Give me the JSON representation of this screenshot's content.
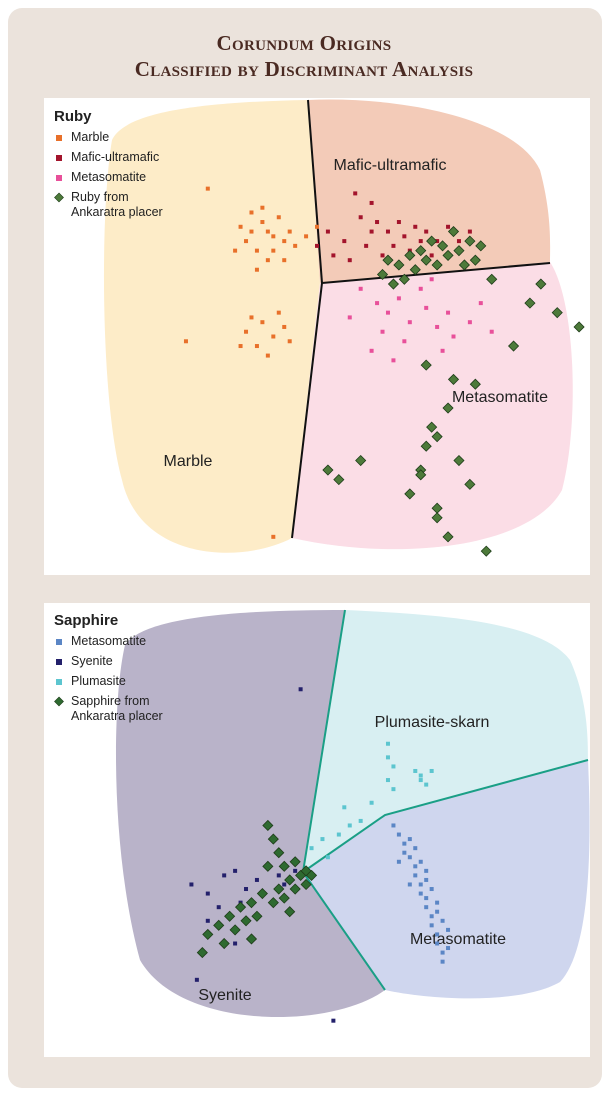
{
  "title": [
    "Corundum Origins",
    "Classified by Discriminant Analysis"
  ],
  "chart_data": [
    {
      "type": "scatter",
      "title": "Ruby",
      "xlim": [
        0,
        100
      ],
      "ylim": [
        0,
        100
      ],
      "annotations": [
        "Mafic-ultramafic",
        "Metasomatite",
        "Marble"
      ],
      "series": [
        {
          "name": "Marble",
          "color": "#e8702a",
          "marker": "square",
          "x": [
            38,
            40,
            42,
            39,
            41,
            44,
            37,
            43,
            40,
            36,
            45,
            39,
            42,
            38,
            46,
            35,
            41,
            44,
            48,
            50,
            37,
            40,
            42,
            39,
            44,
            41,
            38,
            45,
            43,
            36,
            30,
            26,
            42
          ],
          "y": [
            72,
            74,
            71,
            68,
            66,
            70,
            70,
            75,
            77,
            73,
            72,
            64,
            68,
            76,
            69,
            68,
            72,
            66,
            71,
            73,
            51,
            53,
            50,
            48,
            52,
            46,
            54,
            49,
            55,
            48,
            81,
            49,
            8
          ]
        },
        {
          "name": "Mafic-ultramafic",
          "color": "#a3142c",
          "marker": "square",
          "x": [
            57,
            60,
            58,
            61,
            52,
            55,
            63,
            66,
            68,
            70,
            72,
            74,
            64,
            59,
            53,
            56,
            62,
            67,
            76,
            78,
            71,
            60,
            65,
            69,
            50
          ],
          "y": [
            80,
            78,
            75,
            74,
            72,
            70,
            72,
            71,
            73,
            72,
            70,
            73,
            69,
            69,
            67,
            66,
            67,
            68,
            70,
            72,
            67,
            72,
            74,
            70,
            69
          ]
        },
        {
          "name": "Metasomatite",
          "color": "#e8509a",
          "marker": "square",
          "x": [
            58,
            61,
            63,
            65,
            67,
            70,
            72,
            62,
            66,
            74,
            78,
            82,
            56,
            69,
            75,
            60,
            64,
            73,
            71,
            80
          ],
          "y": [
            60,
            57,
            55,
            58,
            53,
            56,
            52,
            51,
            49,
            55,
            53,
            51,
            54,
            60,
            50,
            47,
            45,
            47,
            62,
            57
          ]
        },
        {
          "name": "Ruby from Ankaratra placer",
          "color": "#4d7a3a",
          "marker": "diamond",
          "x": [
            62,
            64,
            66,
            68,
            70,
            72,
            74,
            76,
            78,
            80,
            65,
            67,
            69,
            71,
            73,
            75,
            63,
            77,
            79,
            82,
            89,
            91,
            94,
            98,
            86,
            70,
            79,
            74,
            71,
            70,
            69,
            76,
            78,
            72,
            67,
            72,
            58,
            52,
            54,
            69,
            81,
            74,
            72,
            75
          ],
          "y": [
            63,
            61,
            62,
            64,
            66,
            65,
            67,
            68,
            70,
            69,
            65,
            67,
            68,
            70,
            69,
            72,
            66,
            65,
            66,
            62,
            57,
            61,
            55,
            52,
            48,
            44,
            40,
            35,
            31,
            27,
            22,
            24,
            19,
            14,
            17,
            12,
            24,
            22,
            20,
            21,
            5,
            8,
            29,
            41
          ]
        }
      ]
    },
    {
      "type": "scatter",
      "title": "Sapphire",
      "xlim": [
        0,
        100
      ],
      "ylim": [
        0,
        100
      ],
      "annotations": [
        "Plumasite-skarn",
        "Metasomatite",
        "Syenite"
      ],
      "series": [
        {
          "name": "Metasomatite",
          "color": "#5b86c5",
          "marker": "square",
          "x": [
            64,
            65,
            66,
            66,
            67,
            68,
            68,
            69,
            69,
            70,
            70,
            71,
            71,
            72,
            72,
            73,
            73,
            67,
            68,
            69,
            70,
            70,
            71,
            72,
            72,
            73,
            74,
            74,
            65,
            67
          ],
          "y": [
            51,
            49,
            47,
            45,
            44,
            42,
            40,
            38,
            36,
            35,
            33,
            31,
            29,
            27,
            25,
            23,
            21,
            48,
            46,
            43,
            41,
            39,
            37,
            34,
            32,
            30,
            28,
            24,
            43,
            38
          ]
        },
        {
          "name": "Syenite",
          "color": "#23206b",
          "marker": "square",
          "x": [
            27,
            30,
            33,
            35,
            37,
            39,
            41,
            43,
            32,
            36,
            40,
            44,
            46,
            30,
            34,
            28,
            53,
            47,
            35
          ],
          "y": [
            38,
            36,
            40,
            41,
            37,
            39,
            42,
            40,
            33,
            34,
            36,
            38,
            41,
            30,
            31,
            17,
            8,
            81,
            25
          ]
        },
        {
          "name": "Plumasite",
          "color": "#5cc5cf",
          "marker": "square",
          "x": [
            63,
            63,
            64,
            63,
            64,
            68,
            69,
            71,
            70,
            69,
            58,
            56,
            54,
            51,
            49,
            52,
            55,
            60
          ],
          "y": [
            69,
            66,
            64,
            61,
            59,
            63,
            62,
            63,
            60,
            61,
            52,
            51,
            49,
            48,
            46,
            44,
            55,
            56
          ]
        },
        {
          "name": "Sapphire from Ankaratra placer",
          "color": "#2e6a30",
          "marker": "diamond",
          "x": [
            41,
            42,
            43,
            41,
            44,
            46,
            47,
            48,
            45,
            43,
            40,
            38,
            36,
            34,
            32,
            30,
            35,
            37,
            39,
            42,
            44,
            46,
            33,
            29,
            38,
            45,
            49,
            48
          ],
          "y": [
            51,
            48,
            45,
            42,
            42,
            43,
            40,
            41,
            39,
            37,
            36,
            34,
            33,
            31,
            29,
            27,
            28,
            30,
            31,
            34,
            35,
            37,
            25,
            23,
            26,
            32,
            40,
            38
          ]
        }
      ]
    }
  ]
}
